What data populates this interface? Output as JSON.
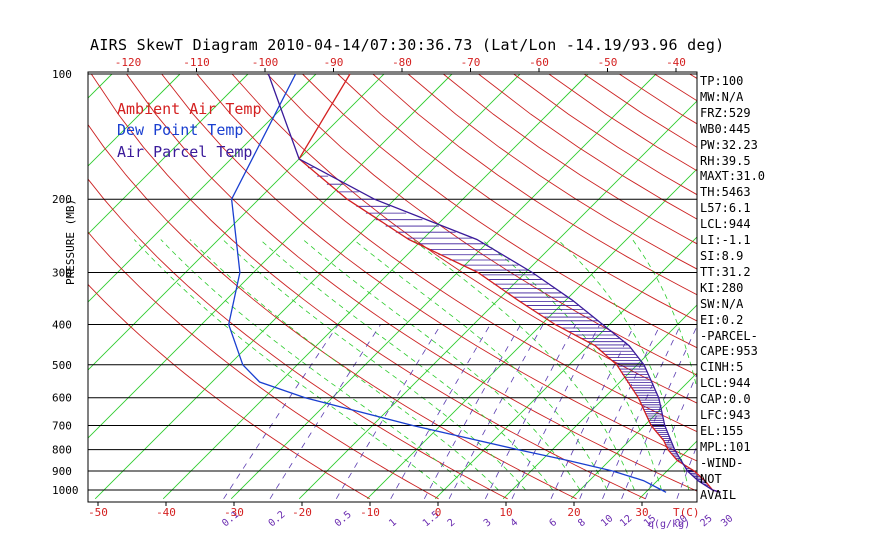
{
  "title": "AIRS SkewT Diagram 2010-04-14/07:30:36.73 (Lat/Lon -14.19/93.96 deg)",
  "legend": [
    {
      "label": "Ambient Air Temp",
      "color": "#d42020"
    },
    {
      "label": "Dew Point Temp",
      "color": "#1a3fd0"
    },
    {
      "label": "Air Parcel Temp",
      "color": "#3a1a9a"
    }
  ],
  "indices": [
    "TP:100",
    "MW:N/A",
    "FRZ:529",
    "WB0:445",
    "PW:32.23",
    "RH:39.5",
    "MAXT:31.0",
    "TH:5463",
    "L57:6.1",
    "LCL:944",
    "LI:-1.1",
    "SI:8.9",
    "TT:31.2",
    "KI:280",
    "SW:N/A",
    "EI:0.2",
    "-PARCEL-",
    "CAPE:953",
    "CINH:5",
    "LCL:944",
    "CAP:0.0",
    "LFC:943",
    "EL:155",
    "MPL:101",
    "-WIND-",
    "NOT",
    "AVAIL"
  ],
  "chart_data": {
    "type": "line",
    "title": "AIRS SkewT Diagram 2010-04-14/07:30:36.73 (Lat/Lon -14.19/93.96 deg)",
    "ylabel": "PRESSURE (MB)",
    "xlabel": "T(C)",
    "pressure_ticks": [
      100,
      200,
      300,
      400,
      500,
      600,
      700,
      800,
      900,
      1000
    ],
    "ylim": [
      1050,
      100
    ],
    "top_temp_ticks": [
      -120,
      -110,
      -100,
      -90,
      -80,
      -70,
      -60,
      -50,
      -40
    ],
    "bottom_temp_ticks": [
      -50,
      -40,
      -30,
      -20,
      -10,
      0,
      10,
      20,
      30
    ],
    "mixing_ratio_unit": "q(g/kg)",
    "mixing_ratio_labels": [
      "0.1",
      "0.2",
      "0.5",
      "1",
      "1.5",
      "2",
      "3",
      "4",
      "6",
      "8",
      "10",
      "12",
      "15",
      "20",
      "25",
      "30"
    ],
    "series": [
      {
        "name": "Ambient Air Temp",
        "color": "#d42020",
        "points": [
          [
            100,
            -85
          ],
          [
            160,
            -80
          ],
          [
            200,
            -67
          ],
          [
            250,
            -52
          ],
          [
            300,
            -37
          ],
          [
            350,
            -27
          ],
          [
            400,
            -18
          ],
          [
            450,
            -9
          ],
          [
            500,
            -3
          ],
          [
            600,
            5
          ],
          [
            700,
            11
          ],
          [
            760,
            15
          ],
          [
            800,
            17
          ],
          [
            850,
            20
          ],
          [
            900,
            24
          ],
          [
            950,
            27
          ],
          [
            1000,
            29.5
          ],
          [
            1013,
            31
          ]
        ]
      },
      {
        "name": "Dew Point Temp",
        "color": "#1a3fd0",
        "points": [
          [
            100,
            -93
          ],
          [
            200,
            -84
          ],
          [
            300,
            -72
          ],
          [
            400,
            -66
          ],
          [
            500,
            -58
          ],
          [
            550,
            -53
          ],
          [
            600,
            -44
          ],
          [
            700,
            -24
          ],
          [
            800,
            -5
          ],
          [
            850,
            4
          ],
          [
            900,
            12
          ],
          [
            950,
            18
          ],
          [
            1000,
            22
          ],
          [
            1013,
            23
          ]
        ]
      },
      {
        "name": "Air Parcel Temp",
        "color": "#3a1a9a",
        "points": [
          [
            100,
            -97
          ],
          [
            160,
            -80
          ],
          [
            200,
            -63
          ],
          [
            250,
            -42
          ],
          [
            300,
            -29
          ],
          [
            350,
            -19
          ],
          [
            400,
            -11
          ],
          [
            450,
            -4
          ],
          [
            500,
            1
          ],
          [
            600,
            8
          ],
          [
            700,
            13
          ],
          [
            800,
            18
          ],
          [
            900,
            23
          ],
          [
            950,
            26
          ],
          [
            1000,
            29.5
          ],
          [
            1013,
            31
          ]
        ]
      }
    ]
  }
}
